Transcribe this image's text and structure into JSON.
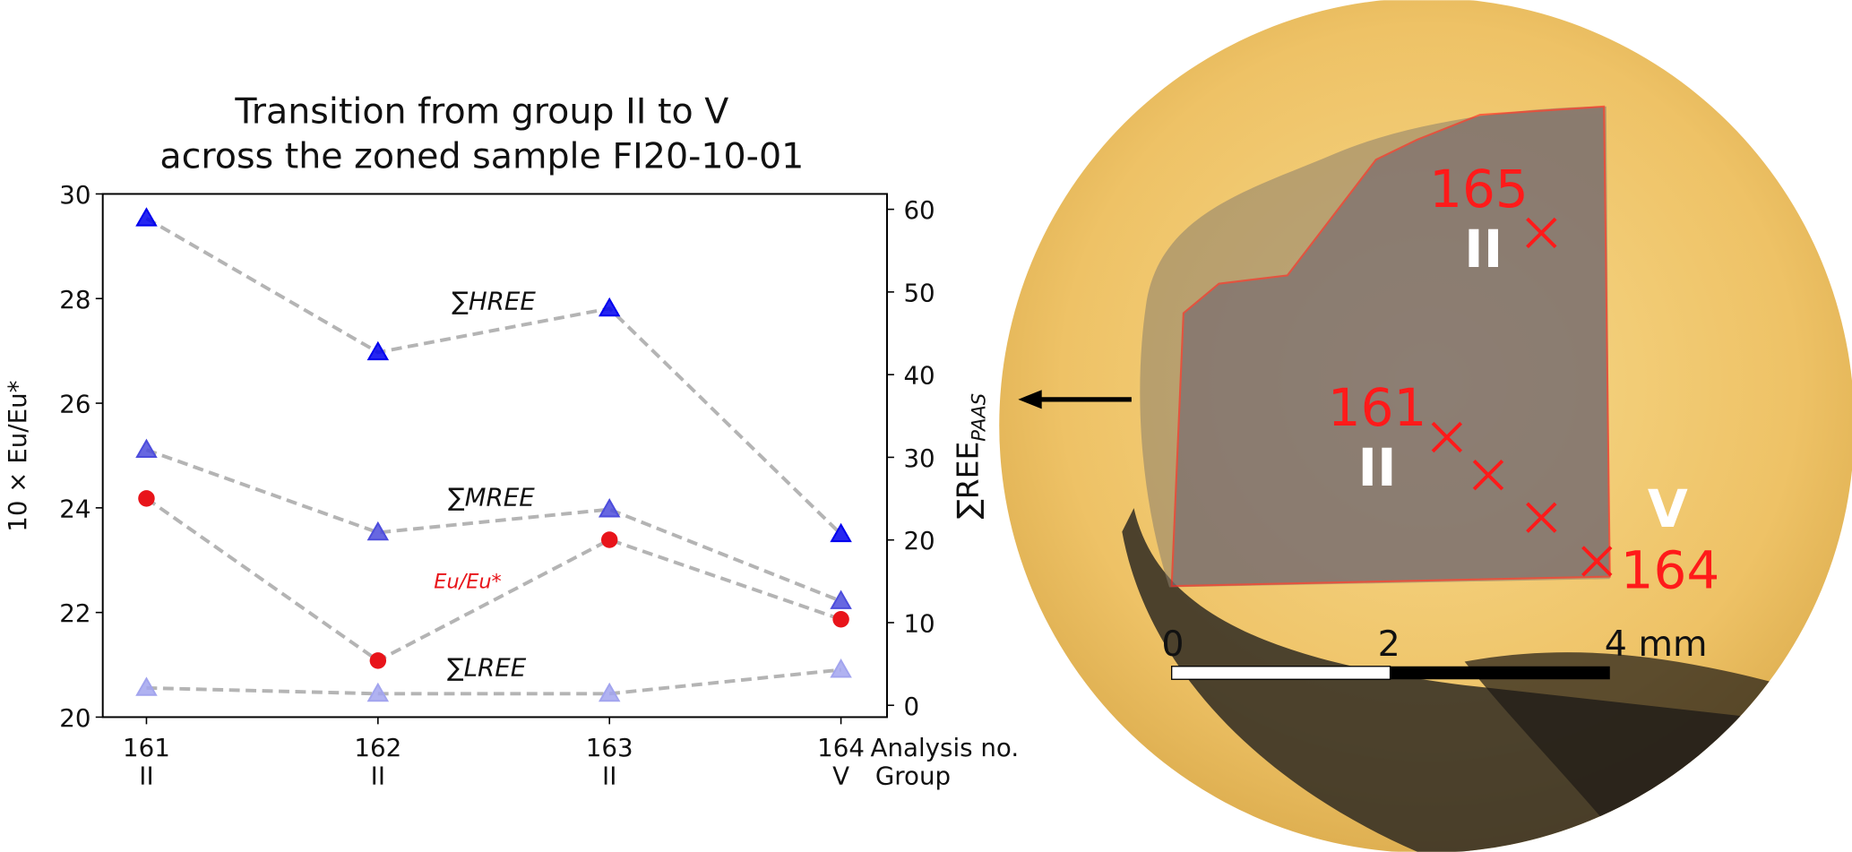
{
  "chart_data": {
    "type": "line",
    "title": "Transition from group II to V",
    "subtitle": "across the zoned sample FI20-10-01",
    "categories": [
      "161",
      "162",
      "163",
      "164"
    ],
    "groups": [
      "II",
      "II",
      "II",
      "V"
    ],
    "xlabel": "Analysis no.",
    "group_label": "Group",
    "ylabel": "10 × Eu/Eu*",
    "y2label": "∑REE",
    "y2label_sub": "PAAS",
    "ylim": [
      20,
      30
    ],
    "yticks": [
      20,
      22,
      24,
      26,
      28,
      30
    ],
    "y2lim": [
      -1.43,
      61.86
    ],
    "y2ticks": [
      0,
      10,
      20,
      30,
      40,
      50,
      60
    ],
    "line_color": "#b4b4b4",
    "series": [
      {
        "name": "∑HREE",
        "color": "#0000ee",
        "marker": "triangle",
        "axis": "y2",
        "values": [
          58.9,
          42.7,
          48.0,
          20.7
        ]
      },
      {
        "name": "∑MREE",
        "color": "#4c4cdc",
        "marker": "triangle",
        "axis": "y2",
        "values": [
          30.9,
          20.9,
          23.7,
          12.6
        ]
      },
      {
        "name": "Eu/Eu*",
        "color": "#e8141a",
        "marker": "circle",
        "axis": "y",
        "values": [
          24.18,
          21.08,
          23.39,
          21.87
        ]
      },
      {
        "name": "∑LREE",
        "color": "#a2a4ee",
        "marker": "triangle",
        "axis": "y2",
        "values": [
          2.1,
          1.4,
          1.4,
          4.3
        ]
      }
    ]
  },
  "photo": {
    "labels": [
      "165",
      "II",
      "161",
      "II",
      "V",
      "164"
    ],
    "scale": [
      "0",
      "2",
      "4 mm"
    ]
  }
}
